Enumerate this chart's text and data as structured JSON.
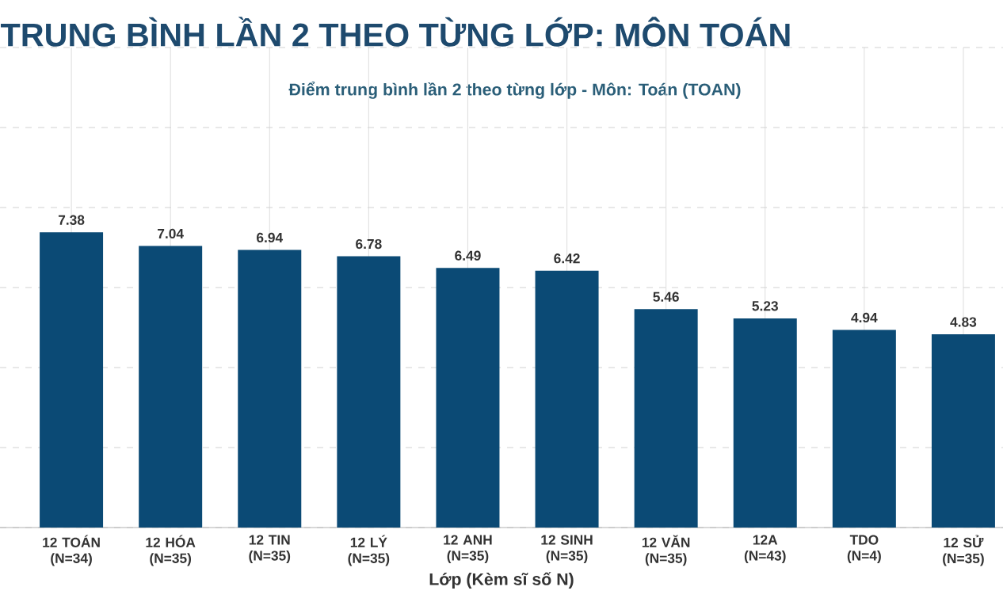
{
  "chart_data": {
    "type": "bar",
    "title": "TRUNG BÌNH LẦN 2 THEO TỪNG LỚP: MÔN TOÁN",
    "subtitle": "Điểm trung bình lần 2 theo từng lớp - Môn: Toán (TOAN)",
    "xlabel": "Lớp (Kèm sĩ số N)",
    "categories": [
      "12 TOÁN (N=34)",
      "12 HÓA (N=35)",
      "12 TIN (N=35)",
      "12 LÝ (N=35)",
      "12 ANH (N=35)",
      "12 SINH (N=35)",
      "12 VĂN (N=35)",
      "12A (N=43)",
      "TDO (N=4)",
      "12 SỬ (N=35)"
    ],
    "values": [
      7.38,
      7.04,
      6.94,
      6.78,
      6.49,
      6.42,
      5.46,
      5.23,
      4.94,
      4.83
    ],
    "color": "#0b4a75",
    "tick_labels": "x",
    "grid": true,
    "data_labels": true
  }
}
